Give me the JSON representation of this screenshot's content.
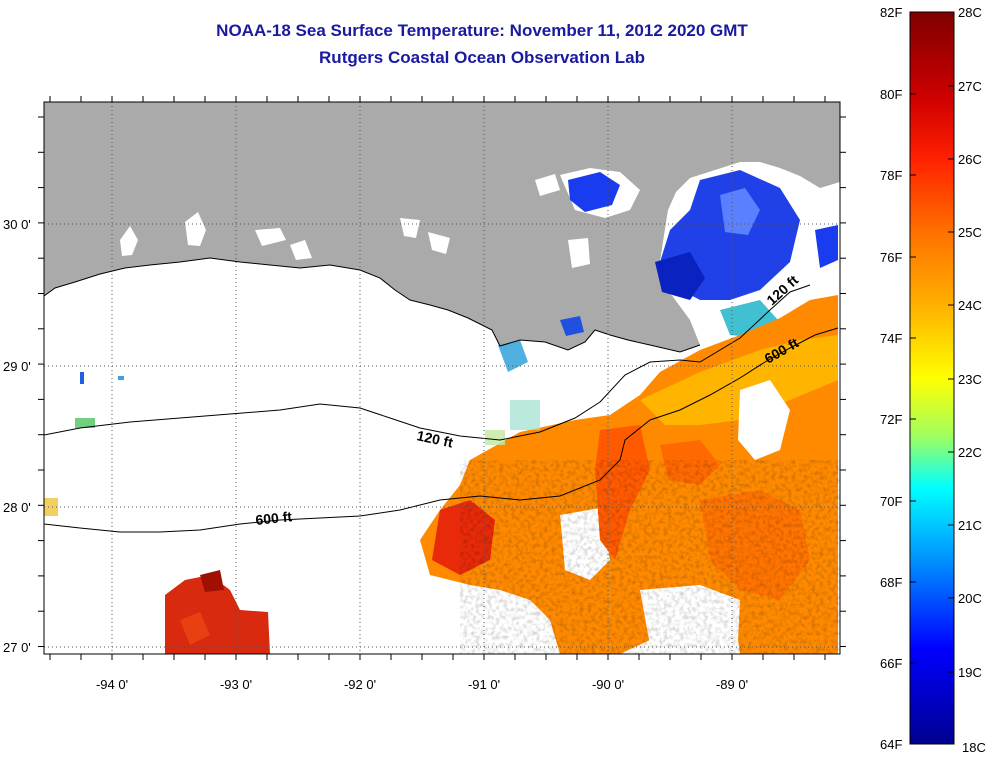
{
  "title": "NOAA-18 Sea Surface Temperature:  November 11, 2012 2020 GMT",
  "subtitle": "Rutgers Coastal Ocean Observation Lab",
  "map": {
    "lon_ticks": [
      "-94 0'",
      "-93 0'",
      "-92 0'",
      "-91 0'",
      "-90 0'",
      "-89 0'"
    ],
    "lat_ticks": [
      "30 0'",
      "29 0'",
      "28 0'",
      "27 0'"
    ],
    "contour_labels": [
      "120 ft",
      "120 ft",
      "600 ft",
      "600 ft"
    ],
    "land_color": "#aaaaaa"
  },
  "colorbar": {
    "fahrenheit": [
      "82F",
      "80F",
      "78F",
      "76F",
      "74F",
      "72F",
      "70F",
      "68F",
      "66F",
      "64F"
    ],
    "celsius": [
      "28C",
      "27C",
      "26C",
      "25C",
      "24C",
      "23C",
      "22C",
      "21C",
      "20C",
      "19C",
      "18C"
    ],
    "colors": [
      "#7f0000",
      "#ff0000",
      "#ff8000",
      "#ffff00",
      "#00ffff",
      "#0000ff",
      "#00008f"
    ]
  }
}
